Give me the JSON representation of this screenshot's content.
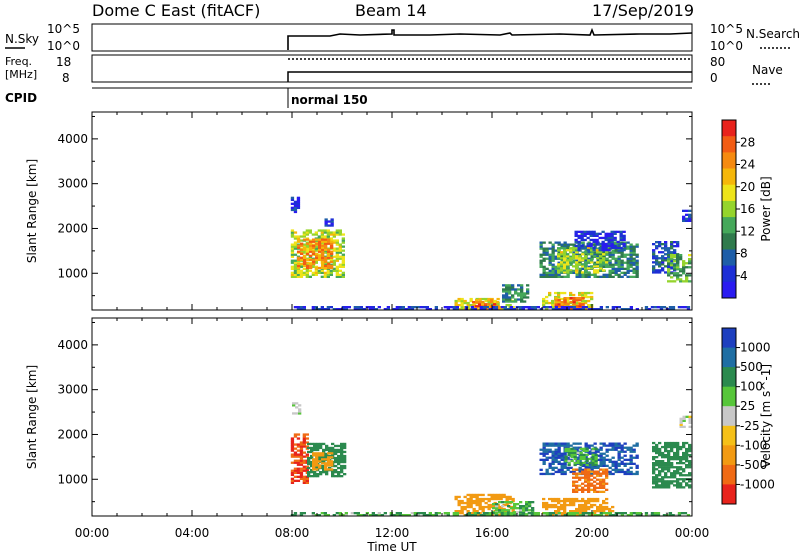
{
  "header": {
    "station": "Dome C East (fitACF)",
    "beam": "Beam 14",
    "date": "17/Sep/2019"
  },
  "status_panels": {
    "nsky_label": "N.Sky",
    "nsky_ticks": [
      "10^5",
      "10^0"
    ],
    "nsearch_label": "N.Search",
    "nsearch_ticks": [
      "10^5",
      "10^0"
    ],
    "freq_label_line1": "Freq.",
    "freq_label_line2": "[MHz]",
    "freq_ticks": [
      "18",
      "8"
    ],
    "nave_label": "Nave",
    "nave_ticks": [
      "80",
      "0"
    ],
    "cpid_label": "CPID",
    "cpid_value": "normal 150"
  },
  "x_axis": {
    "title": "Time UT",
    "ticks": [
      "00:00",
      "04:00",
      "08:00",
      "12:00",
      "16:00",
      "20:00",
      "00:00"
    ]
  },
  "chart_data": [
    {
      "type": "heatmap",
      "panel": "power",
      "ylabel": "Slant Range [km]",
      "yticks": [
        "4000",
        "3000",
        "2000",
        "1000"
      ],
      "ylim": [
        180,
        4600
      ],
      "xlim_hours": [
        0,
        24
      ],
      "colorbar_label": "Power [dB]",
      "colorbar_ticks": [
        "28",
        "24",
        "20",
        "16",
        "12",
        "8",
        "4"
      ],
      "colorbar_colors": [
        "#e8221c",
        "#f25c14",
        "#f58a10",
        "#f5b70a",
        "#eee41a",
        "#95d42c",
        "#45a85a",
        "#2f7a4c",
        "#1e5ea8",
        "#1d2fd6",
        "#2a1bf0"
      ],
      "regions": [
        {
          "t0": 7.95,
          "t1": 10.1,
          "r0": 900,
          "r1": 1950,
          "value": 18
        },
        {
          "t0": 8.2,
          "t1": 9.6,
          "r0": 1100,
          "r1": 1750,
          "value": 26
        },
        {
          "t0": 7.95,
          "t1": 8.3,
          "r0": 2350,
          "r1": 2700,
          "value": 6
        },
        {
          "t0": 9.3,
          "t1": 9.6,
          "r0": 2000,
          "r1": 2200,
          "value": 6
        },
        {
          "t0": 14.5,
          "t1": 16.8,
          "r0": 180,
          "r1": 450,
          "value": 20
        },
        {
          "t0": 15.2,
          "t1": 16.2,
          "r0": 200,
          "r1": 420,
          "value": 27
        },
        {
          "t0": 16.4,
          "t1": 17.4,
          "r0": 350,
          "r1": 750,
          "value": 12
        },
        {
          "t0": 18.0,
          "t1": 20.0,
          "r0": 180,
          "r1": 550,
          "value": 20
        },
        {
          "t0": 18.5,
          "t1": 19.6,
          "r0": 200,
          "r1": 450,
          "value": 27
        },
        {
          "t0": 17.9,
          "t1": 21.8,
          "r0": 900,
          "r1": 1700,
          "value": 12
        },
        {
          "t0": 18.6,
          "t1": 20.6,
          "r0": 1000,
          "r1": 1550,
          "value": 18
        },
        {
          "t0": 19.3,
          "t1": 21.3,
          "r0": 1500,
          "r1": 1950,
          "value": 6
        },
        {
          "t0": 22.4,
          "t1": 23.4,
          "r0": 1000,
          "r1": 1700,
          "value": 8
        },
        {
          "t0": 23.0,
          "t1": 23.9,
          "r0": 800,
          "r1": 1400,
          "value": 15
        },
        {
          "t0": 23.6,
          "t1": 23.9,
          "r0": 2150,
          "r1": 2400,
          "value": 6
        },
        {
          "t0": 7.95,
          "t1": 23.9,
          "r0": 180,
          "r1": 260,
          "value": 6
        }
      ]
    },
    {
      "type": "heatmap",
      "panel": "velocity",
      "ylabel": "Slant Range [km]",
      "yticks": [
        "4000",
        "3000",
        "2000",
        "1000"
      ],
      "ylim": [
        180,
        4600
      ],
      "xlim_hours": [
        0,
        24
      ],
      "colorbar_label": "Velocity [m s^-1]",
      "colorbar_ticks": [
        "1000",
        "500",
        "100",
        "25",
        "-25",
        "-100",
        "-500",
        "-1000"
      ],
      "colorbar_colors": [
        "#1d3fbf",
        "#1f6ea3",
        "#2b8a4e",
        "#57c63a",
        "#c8c8c8",
        "#f5c018",
        "#f29a12",
        "#f06a14",
        "#e8231c"
      ],
      "regions": [
        {
          "t0": 7.95,
          "t1": 8.6,
          "r0": 900,
          "r1": 2000,
          "value": -700
        },
        {
          "t0": 8.6,
          "t1": 10.1,
          "r0": 1050,
          "r1": 1800,
          "value": 150
        },
        {
          "t0": 8.8,
          "t1": 9.6,
          "r0": 1200,
          "r1": 1600,
          "value": -200
        },
        {
          "t0": 8.0,
          "t1": 8.3,
          "r0": 2450,
          "r1": 2700,
          "value": 0
        },
        {
          "t0": 14.5,
          "t1": 16.8,
          "r0": 180,
          "r1": 650,
          "value": -150
        },
        {
          "t0": 16.0,
          "t1": 17.6,
          "r0": 200,
          "r1": 500,
          "value": 60
        },
        {
          "t0": 18.0,
          "t1": 20.8,
          "r0": 180,
          "r1": 550,
          "value": -120
        },
        {
          "t0": 17.9,
          "t1": 21.8,
          "r0": 1100,
          "r1": 1800,
          "value": 700
        },
        {
          "t0": 19.2,
          "t1": 20.6,
          "r0": 700,
          "r1": 1200,
          "value": -400
        },
        {
          "t0": 18.9,
          "t1": 20.2,
          "r0": 1300,
          "r1": 1700,
          "value": 60
        },
        {
          "t0": 22.4,
          "t1": 23.9,
          "r0": 800,
          "r1": 1800,
          "value": 150
        },
        {
          "t0": 23.5,
          "t1": 23.9,
          "r0": 2150,
          "r1": 2400,
          "value": 0
        },
        {
          "t0": 7.95,
          "t1": 23.9,
          "r0": 180,
          "r1": 260,
          "value": 60
        }
      ]
    }
  ]
}
